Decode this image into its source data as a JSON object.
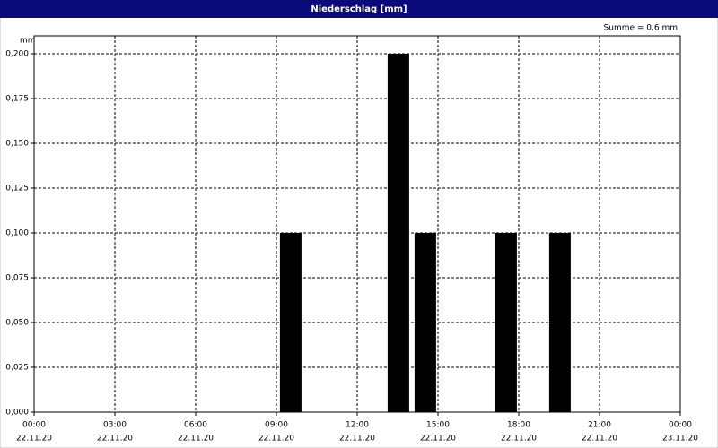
{
  "chart_data": {
    "type": "bar",
    "title": "Niederschlag [mm]",
    "y_unit": "mm",
    "annotation": "Summe = 0,6 mm",
    "x": [
      9,
      13,
      14,
      17,
      19
    ],
    "values": [
      0.1,
      0.2,
      0.1,
      0.1,
      0.1
    ],
    "color": "#000000",
    "xlim": [
      0,
      24
    ],
    "xticks": [
      {
        "value": 0,
        "label": "00:00"
      },
      {
        "value": 3,
        "label": "03:00"
      },
      {
        "value": 6,
        "label": "06:00"
      },
      {
        "value": 9,
        "label": "09:00"
      },
      {
        "value": 12,
        "label": "12:00"
      },
      {
        "value": 15,
        "label": "15:00"
      },
      {
        "value": 18,
        "label": "18:00"
      },
      {
        "value": 21,
        "label": "21:00"
      },
      {
        "value": 24,
        "label": "00:00"
      }
    ],
    "xtick_dates": [
      "22.11.20",
      "22.11.20",
      "22.11.20",
      "22.11.20",
      "22.11.20",
      "22.11.20",
      "22.11.20",
      "22.11.20",
      "23.11.20"
    ],
    "ylim": [
      0,
      0.21
    ],
    "yticks": [
      {
        "value": 0,
        "label": "0,000"
      },
      {
        "value": 0.025,
        "label": "0,025"
      },
      {
        "value": 0.05,
        "label": "0,050"
      },
      {
        "value": 0.075,
        "label": "0,075"
      },
      {
        "value": 0.1,
        "label": "0,100"
      },
      {
        "value": 0.125,
        "label": "0,125"
      },
      {
        "value": 0.15,
        "label": "0,150"
      },
      {
        "value": 0.175,
        "label": "0,175"
      },
      {
        "value": 0.2,
        "label": "0,200"
      }
    ],
    "grid": true
  }
}
